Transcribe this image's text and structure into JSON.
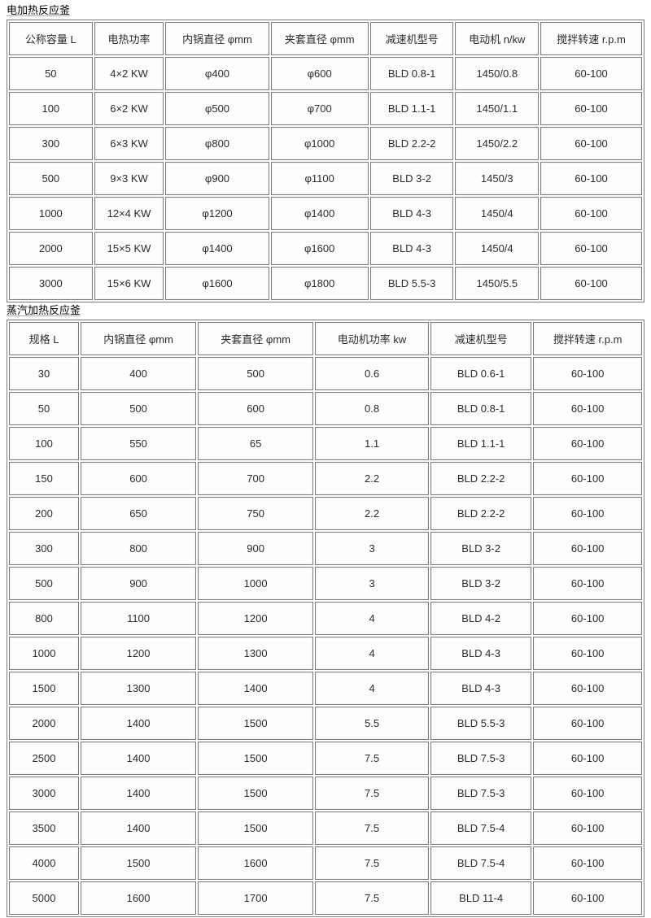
{
  "colors": {
    "border": "#7b7b7b",
    "cell_bg": "#fdfdfd",
    "text": "#2b2b2b",
    "title_text": "#000000",
    "page_bg": "#ffffff"
  },
  "table1": {
    "title": "电加热反应釜",
    "col_widths": [
      "13.4%",
      "11.2%",
      "16.6%",
      "15.7%",
      "13.4%",
      "13.4%",
      "16.3%"
    ],
    "headers": [
      "公称容量 L",
      "电热功率",
      "内锅直径 φmm",
      "夹套直径 φmm",
      "减速机型号",
      "电动机 n/kw",
      "搅拌转速 r.p.m"
    ],
    "rows": [
      [
        "50",
        "4×2 KW",
        "φ400",
        "φ600",
        "BLD 0.8-1",
        "1450/0.8",
        "60-100"
      ],
      [
        "100",
        "6×2 KW",
        "φ500",
        "φ700",
        "BLD 1.1-1",
        "1450/1.1",
        "60-100"
      ],
      [
        "300",
        "6×3 KW",
        "φ800",
        "φ1000",
        "BLD 2.2-2",
        "1450/2.2",
        "60-100"
      ],
      [
        "500",
        "9×3 KW",
        "φ900",
        "φ1100",
        "BLD 3-2",
        "1450/3",
        "60-100"
      ],
      [
        "1000",
        "12×4 KW",
        "φ1200",
        "φ1400",
        "BLD 4-3",
        "1450/4",
        "60-100"
      ],
      [
        "2000",
        "15×5 KW",
        "φ1400",
        "φ1600",
        "BLD 4-3",
        "1450/4",
        "60-100"
      ],
      [
        "3000",
        "15×6 KW",
        "φ1600",
        "φ1800",
        "BLD 5.5-3",
        "1450/5.5",
        "60-100"
      ]
    ]
  },
  "table2": {
    "title": "蒸汽加热反应釜",
    "col_widths": [
      "11.2%",
      "18.5%",
      "18.5%",
      "18.2%",
      "16.2%",
      "17.4%"
    ],
    "headers": [
      "规格 L",
      "内锅直径 φmm",
      "夹套直径 φmm",
      "电动机功率 kw",
      "减速机型号",
      "搅拌转速 r.p.m"
    ],
    "rows": [
      [
        "30",
        "400",
        "500",
        "0.6",
        "BLD 0.6-1",
        "60-100"
      ],
      [
        "50",
        "500",
        "600",
        "0.8",
        "BLD 0.8-1",
        "60-100"
      ],
      [
        "100",
        "550",
        "65",
        "1.1",
        "BLD 1.1-1",
        "60-100"
      ],
      [
        "150",
        "600",
        "700",
        "2.2",
        "BLD 2.2-2",
        "60-100"
      ],
      [
        "200",
        "650",
        "750",
        "2.2",
        "BLD 2.2-2",
        "60-100"
      ],
      [
        "300",
        "800",
        "900",
        "3",
        "BLD 3-2",
        "60-100"
      ],
      [
        "500",
        "900",
        "1000",
        "3",
        "BLD 3-2",
        "60-100"
      ],
      [
        "800",
        "1100",
        "1200",
        "4",
        "BLD 4-2",
        "60-100"
      ],
      [
        "1000",
        "1200",
        "1300",
        "4",
        "BLD 4-3",
        "60-100"
      ],
      [
        "1500",
        "1300",
        "1400",
        "4",
        "BLD 4-3",
        "60-100"
      ],
      [
        "2000",
        "1400",
        "1500",
        "5.5",
        "BLD 5.5-3",
        "60-100"
      ],
      [
        "2500",
        "1400",
        "1500",
        "7.5",
        "BLD 7.5-3",
        "60-100"
      ],
      [
        "3000",
        "1400",
        "1500",
        "7.5",
        "BLD 7.5-3",
        "60-100"
      ],
      [
        "3500",
        "1400",
        "1500",
        "7.5",
        "BLD 7.5-4",
        "60-100"
      ],
      [
        "4000",
        "1500",
        "1600",
        "7.5",
        "BLD 7.5-4",
        "60-100"
      ],
      [
        "5000",
        "1600",
        "1700",
        "7.5",
        "BLD 11-4",
        "60-100"
      ]
    ]
  }
}
